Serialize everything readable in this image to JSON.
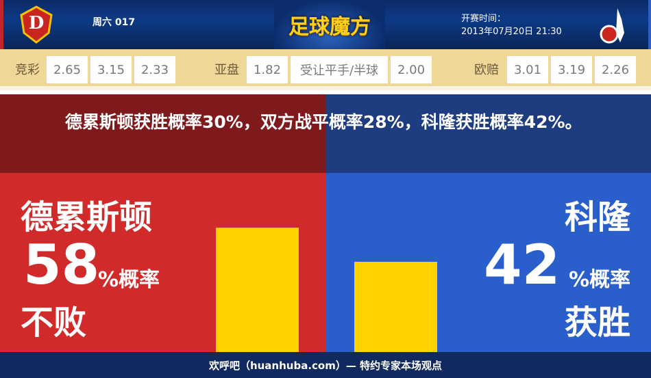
{
  "header": {
    "home_team_logo": "Dynamo Dresden crest",
    "away_team_logo": "1. FC Köln crest",
    "match_code": "周六 017",
    "brand": "足球魔方",
    "kickoff_label": "开赛时间：",
    "kickoff_time": "2013年07月20日 21:30"
  },
  "odds": {
    "jingcai": {
      "label": "竞彩",
      "values": [
        "2.65",
        "3.15",
        "2.33"
      ]
    },
    "asian": {
      "label": "亚盘",
      "home": "1.82",
      "handicap": "受让平手/半球",
      "away": "2.00"
    },
    "euro": {
      "label": "欧赔",
      "values": [
        "3.01",
        "3.19",
        "2.26"
      ]
    }
  },
  "summary": "德累斯顿获胜概率30%，双方战平概率28%，科隆获胜概率42%。",
  "home": {
    "name": "德累斯顿",
    "percent": "58",
    "unit": "%概率",
    "outcome": "不败",
    "value": 58
  },
  "away": {
    "name": "科隆",
    "percent": "42",
    "unit": "%概率",
    "outcome": "获胜",
    "value": 42
  },
  "colors": {
    "home": "#d02a2a",
    "away": "#2a5fcb",
    "bar": "#ffd200"
  },
  "footer": "欢呼吧（huanhuba.com）— 特约专家本场观点"
}
